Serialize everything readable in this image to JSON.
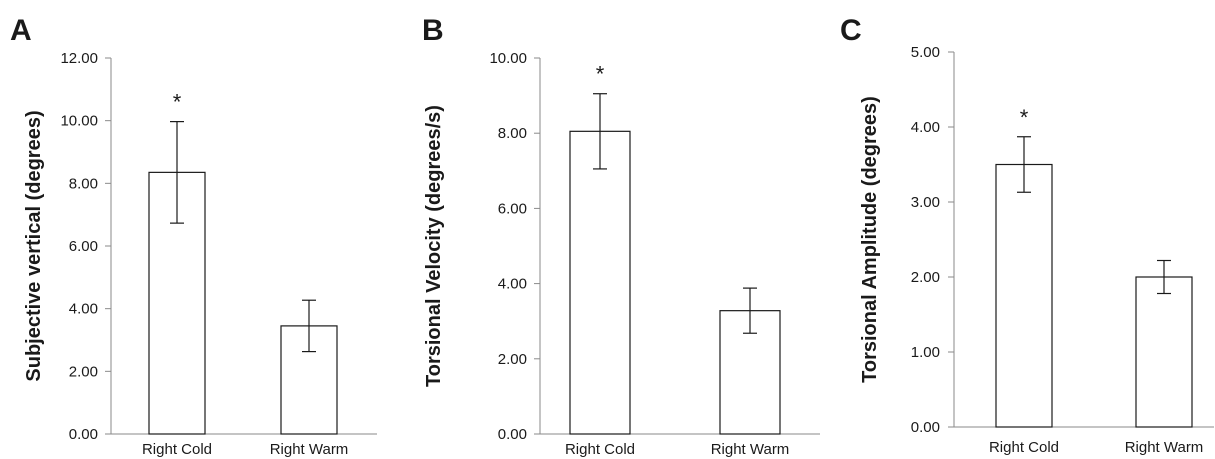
{
  "colors": {
    "bar_fill": "#ffffff",
    "stroke": "#1a1a1a",
    "axis": "#8a8a8a"
  },
  "chart_data": [
    {
      "type": "bar",
      "panel": "A",
      "title": "",
      "xlabel": "",
      "ylabel": "Subjective vertical (degrees)",
      "categories": [
        "Right Cold",
        "Right Warm"
      ],
      "values": [
        8.35,
        3.45
      ],
      "errors": [
        1.62,
        0.82
      ],
      "significance": [
        "*",
        ""
      ],
      "ylim": [
        0,
        12
      ],
      "yticks": [
        0,
        2,
        4,
        6,
        8,
        10,
        12
      ],
      "ytick_labels": [
        "0.00",
        "2.00",
        "4.00",
        "6.00",
        "8.00",
        "10.00",
        "12.00"
      ],
      "grid": false,
      "legend": "none"
    },
    {
      "type": "bar",
      "panel": "B",
      "title": "",
      "xlabel": "",
      "ylabel": "Torsional Velocity (degrees/s)",
      "categories": [
        "Right Cold",
        "Right Warm"
      ],
      "values": [
        8.05,
        3.28
      ],
      "errors": [
        1.0,
        0.6
      ],
      "significance": [
        "*",
        ""
      ],
      "ylim": [
        0,
        10
      ],
      "yticks": [
        0,
        2,
        4,
        6,
        8,
        10
      ],
      "ytick_labels": [
        "0.00",
        "2.00",
        "4.00",
        "6.00",
        "8.00",
        "10.00"
      ],
      "grid": false,
      "legend": "none"
    },
    {
      "type": "bar",
      "panel": "C",
      "title": "",
      "xlabel": "",
      "ylabel": "Torsional Amplitude (degrees)",
      "categories": [
        "Right Cold",
        "Right Warm"
      ],
      "values": [
        3.5,
        2.0
      ],
      "errors": [
        0.37,
        0.22
      ],
      "significance": [
        "*",
        ""
      ],
      "ylim": [
        0,
        5
      ],
      "yticks": [
        0,
        1,
        2,
        3,
        4,
        5
      ],
      "ytick_labels": [
        "0.00",
        "1.00",
        "2.00",
        "3.00",
        "4.00",
        "5.00"
      ],
      "grid": false,
      "legend": "none"
    }
  ]
}
